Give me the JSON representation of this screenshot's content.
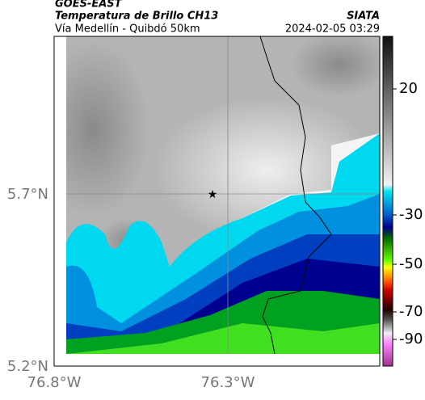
{
  "header": {
    "source": "GOES-EAST",
    "title": "Temperatura de Brillo CH13",
    "subtitle": "Vía Medellín - Quibdó 50km",
    "agency": "SIATA",
    "timestamp": "2024-02-05 03:29"
  },
  "map": {
    "lat_labels": [
      "5.7°N",
      "5.2°N"
    ],
    "lon_labels": [
      "76.8°W",
      "76.3°W"
    ]
  },
  "colorbar": {
    "tick_labels": [
      "20",
      "-30",
      "-50",
      "-70",
      "-90"
    ]
  }
}
